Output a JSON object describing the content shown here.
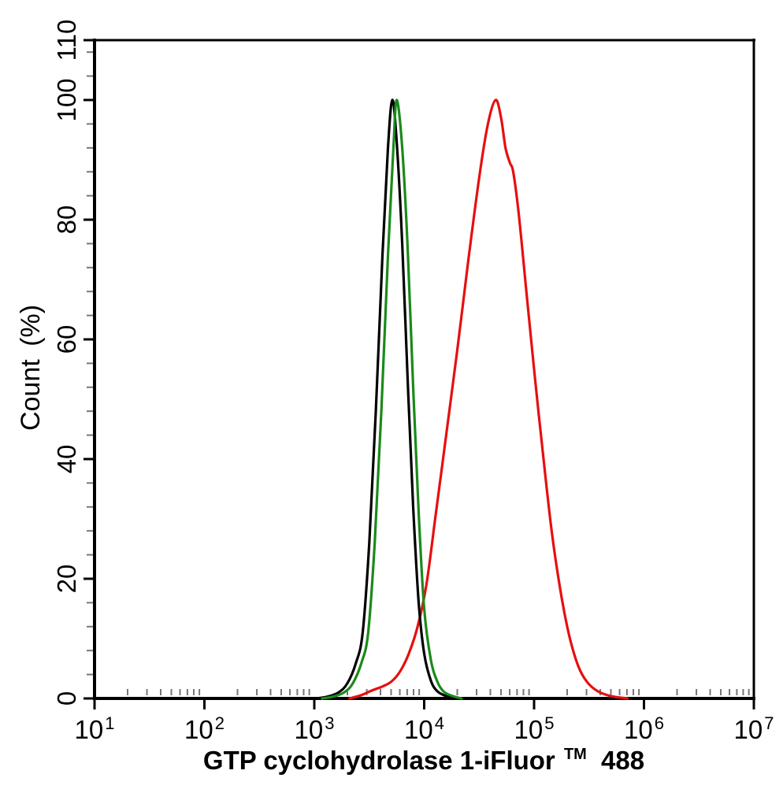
{
  "figure": {
    "background": "#ffffff"
  },
  "chart_data": {
    "type": "line",
    "subtype": "flow-cytometry-histogram-overlay",
    "title": "",
    "xlabel": "GTP cyclohydrolase 1-iFluor™ 488",
    "xlabel_main": "GTP cyclohydrolase 1-iFluor",
    "xlabel_sup": "TM",
    "xlabel_suffix": "488",
    "ylabel": "Count (%)",
    "x_scale": "log10",
    "x_range_log10": [
      1,
      7
    ],
    "x_tick_base": "10",
    "x_tick_exponents": [
      1,
      2,
      3,
      4,
      5,
      6,
      7
    ],
    "x_minor_ticks_per_decade": [
      2,
      3,
      4,
      5,
      6,
      7,
      8,
      9
    ],
    "y_range": [
      0,
      110
    ],
    "y_major_ticks": [
      0,
      20,
      40,
      60,
      80,
      100,
      110
    ],
    "y_minor_step": 4,
    "grid": false,
    "legend": "none",
    "axis_color": "#000000",
    "minor_tick_color": "#777777",
    "series": [
      {
        "name": "red-curve",
        "color": "#e60f0f",
        "peak_log10_x": 4.65,
        "peak_percent": 100,
        "points": [
          [
            3.32,
            0
          ],
          [
            3.42,
            0.5
          ],
          [
            3.52,
            1.3
          ],
          [
            3.62,
            2
          ],
          [
            3.7,
            2.8
          ],
          [
            3.78,
            4.5
          ],
          [
            3.86,
            7.5
          ],
          [
            3.94,
            12
          ],
          [
            4.02,
            19
          ],
          [
            4.1,
            30
          ],
          [
            4.2,
            44
          ],
          [
            4.3,
            58
          ],
          [
            4.4,
            73
          ],
          [
            4.5,
            87
          ],
          [
            4.58,
            96
          ],
          [
            4.65,
            100
          ],
          [
            4.7,
            97
          ],
          [
            4.74,
            92
          ],
          [
            4.78,
            89.5
          ],
          [
            4.81,
            88
          ],
          [
            4.86,
            81
          ],
          [
            4.93,
            68
          ],
          [
            5.0,
            55
          ],
          [
            5.08,
            41
          ],
          [
            5.16,
            28
          ],
          [
            5.24,
            18
          ],
          [
            5.32,
            10.5
          ],
          [
            5.4,
            5.5
          ],
          [
            5.48,
            2.8
          ],
          [
            5.58,
            1.2
          ],
          [
            5.7,
            0.4
          ],
          [
            5.85,
            0
          ]
        ]
      },
      {
        "name": "black-curve",
        "color": "#000000",
        "peak_log10_x": 3.71,
        "peak_percent": 100,
        "points": [
          [
            3.02,
            0
          ],
          [
            3.12,
            0.3
          ],
          [
            3.22,
            1
          ],
          [
            3.3,
            2.5
          ],
          [
            3.38,
            6
          ],
          [
            3.44,
            11
          ],
          [
            3.5,
            26
          ],
          [
            3.56,
            48
          ],
          [
            3.62,
            74
          ],
          [
            3.67,
            92
          ],
          [
            3.71,
            100
          ],
          [
            3.75,
            93
          ],
          [
            3.8,
            76
          ],
          [
            3.85,
            53
          ],
          [
            3.9,
            32
          ],
          [
            3.95,
            16
          ],
          [
            4.0,
            7.5
          ],
          [
            4.06,
            3
          ],
          [
            4.12,
            1.2
          ],
          [
            4.2,
            0.4
          ],
          [
            4.28,
            0
          ]
        ]
      },
      {
        "name": "green-curve",
        "color": "#1a8a1a",
        "peak_log10_x": 3.75,
        "peak_percent": 100,
        "points": [
          [
            3.07,
            0
          ],
          [
            3.17,
            0.3
          ],
          [
            3.27,
            1
          ],
          [
            3.35,
            2.5
          ],
          [
            3.43,
            6
          ],
          [
            3.49,
            11
          ],
          [
            3.55,
            26
          ],
          [
            3.61,
            48
          ],
          [
            3.67,
            74
          ],
          [
            3.72,
            92
          ],
          [
            3.75,
            100
          ],
          [
            3.8,
            92
          ],
          [
            3.85,
            75
          ],
          [
            3.9,
            52
          ],
          [
            3.95,
            31
          ],
          [
            4.0,
            15
          ],
          [
            4.06,
            6.5
          ],
          [
            4.12,
            2.8
          ],
          [
            4.18,
            1.1
          ],
          [
            4.26,
            0.4
          ],
          [
            4.34,
            0
          ]
        ]
      }
    ]
  }
}
